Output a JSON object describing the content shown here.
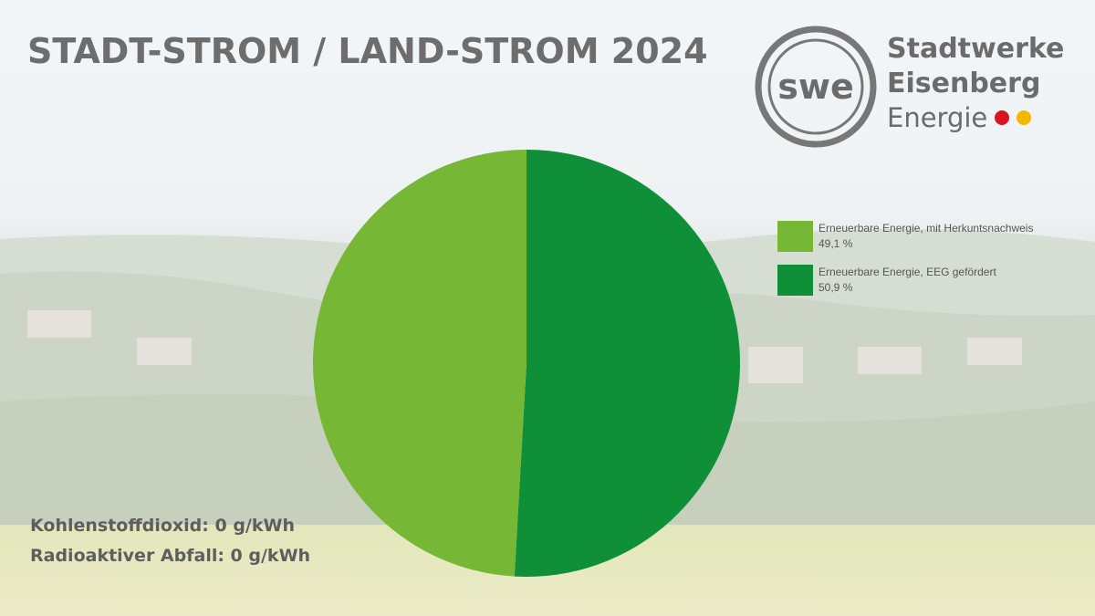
{
  "title": "STADT-STROM / LAND-STROM 2024",
  "logo": {
    "monogram": "swe",
    "line1": "Stadtwerke",
    "line2": "Eisenberg",
    "line3": "Energie",
    "dot_colors": [
      "#d9141c",
      "#f5b800"
    ]
  },
  "notes": {
    "co2": "Kohlenstoffdioxid: 0 g/kWh",
    "waste": "Radioaktiver Abfall: 0 g/kWh"
  },
  "chart_data": {
    "type": "pie",
    "title": "",
    "legend_position": "right",
    "series": [
      {
        "name": "Erneuerbare Energie, mit Herkuntsnachweis",
        "value": 49.1,
        "label": "49,1 %",
        "color": "#76b736"
      },
      {
        "name": "Erneuerbare Energie, EEG gefördert",
        "value": 50.9,
        "label": "50,9 %",
        "color": "#0f8f37"
      }
    ]
  }
}
